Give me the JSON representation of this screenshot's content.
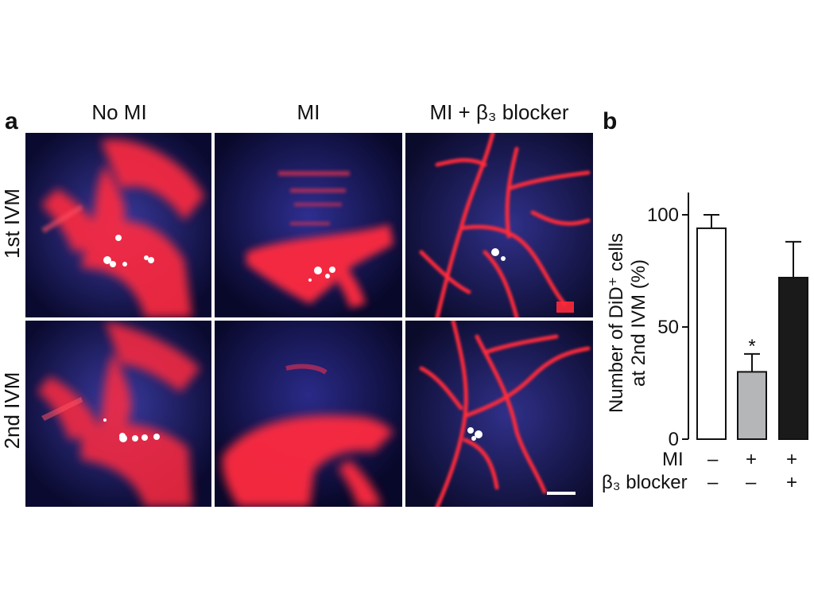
{
  "figure": {
    "panel_a_label": "a",
    "panel_b_label": "b",
    "columns": [
      "No MI",
      "MI",
      "MI + β₃ blocker"
    ],
    "rows": [
      "1st IVM",
      "2nd IVM"
    ],
    "colors": {
      "background": "#06061a",
      "tissue": "#2a2a8c",
      "vessel": "#ff2a3a",
      "cell": "#ffffff",
      "bar_no_mi": "#ffffff",
      "bar_mi": "#b4b6b8",
      "bar_mi_blocker": "#1a1a1a"
    }
  },
  "chart_data": {
    "type": "bar",
    "ylabel_line1": "Number of DiD⁺ cells",
    "ylabel_line2": "at 2nd IVM (%)",
    "ylim": [
      0,
      100
    ],
    "yticks": [
      "0",
      "50",
      "100"
    ],
    "bars": [
      {
        "value": 94,
        "error": 6,
        "color": "#ffffff",
        "sig": ""
      },
      {
        "value": 30,
        "error": 8,
        "color": "#b4b6b8",
        "sig": "*"
      },
      {
        "value": 72,
        "error": 16,
        "color": "#1a1a1a",
        "sig": ""
      }
    ],
    "condition_rows": [
      {
        "label": "MI",
        "values": [
          "–",
          "+",
          "+"
        ]
      },
      {
        "label": "β₃ blocker",
        "values": [
          "–",
          "–",
          "+"
        ]
      }
    ]
  }
}
